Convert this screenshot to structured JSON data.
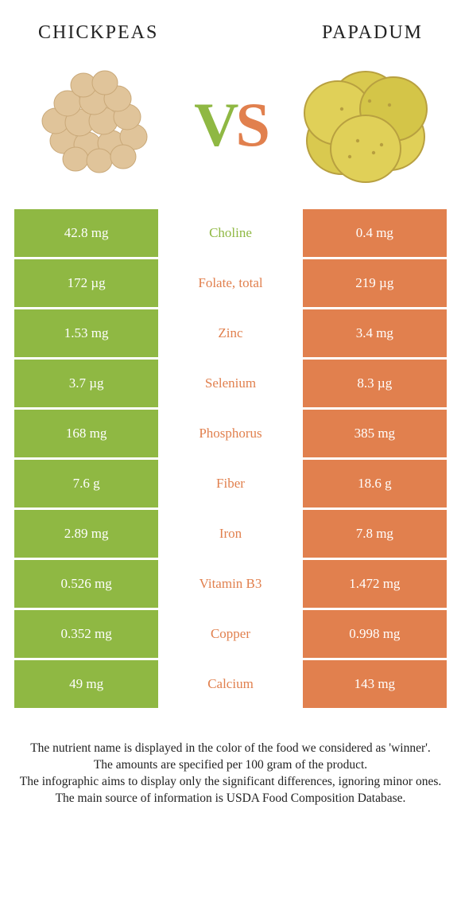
{
  "header": {
    "left_title": "CHICKPEAS",
    "right_title": "PAPADUM"
  },
  "vs": {
    "v": "V",
    "s": "S"
  },
  "colors": {
    "left_food": "#8fb843",
    "right_food": "#e1804e",
    "v_color": "#8fb843",
    "s_color": "#e1804e",
    "chickpea_fill": "#e0c49a",
    "chickpea_stroke": "#c9a878",
    "papadum_fill": "#d9c94f",
    "papadum_stroke": "#b8a040"
  },
  "rows": [
    {
      "left": "42.8 mg",
      "label": "Choline",
      "right": "0.4 mg",
      "winner": "left"
    },
    {
      "left": "172 µg",
      "label": "Folate, total",
      "right": "219 µg",
      "winner": "right"
    },
    {
      "left": "1.53 mg",
      "label": "Zinc",
      "right": "3.4 mg",
      "winner": "right"
    },
    {
      "left": "3.7 µg",
      "label": "Selenium",
      "right": "8.3 µg",
      "winner": "right"
    },
    {
      "left": "168 mg",
      "label": "Phosphorus",
      "right": "385 mg",
      "winner": "right"
    },
    {
      "left": "7.6 g",
      "label": "Fiber",
      "right": "18.6 g",
      "winner": "right"
    },
    {
      "left": "2.89 mg",
      "label": "Iron",
      "right": "7.8 mg",
      "winner": "right"
    },
    {
      "left": "0.526 mg",
      "label": "Vitamin B3",
      "right": "1.472 mg",
      "winner": "right"
    },
    {
      "left": "0.352 mg",
      "label": "Copper",
      "right": "0.998 mg",
      "winner": "right"
    },
    {
      "left": "49 mg",
      "label": "Calcium",
      "right": "143 mg",
      "winner": "right"
    }
  ],
  "footer": {
    "line1": "The nutrient name is displayed in the color of the food we considered as 'winner'.",
    "line2": "The amounts are specified per 100 gram of the product.",
    "line3": "The infographic aims to display only the significant differences, ignoring minor ones.",
    "line4": "The main source of information is USDA Food Composition Database."
  }
}
